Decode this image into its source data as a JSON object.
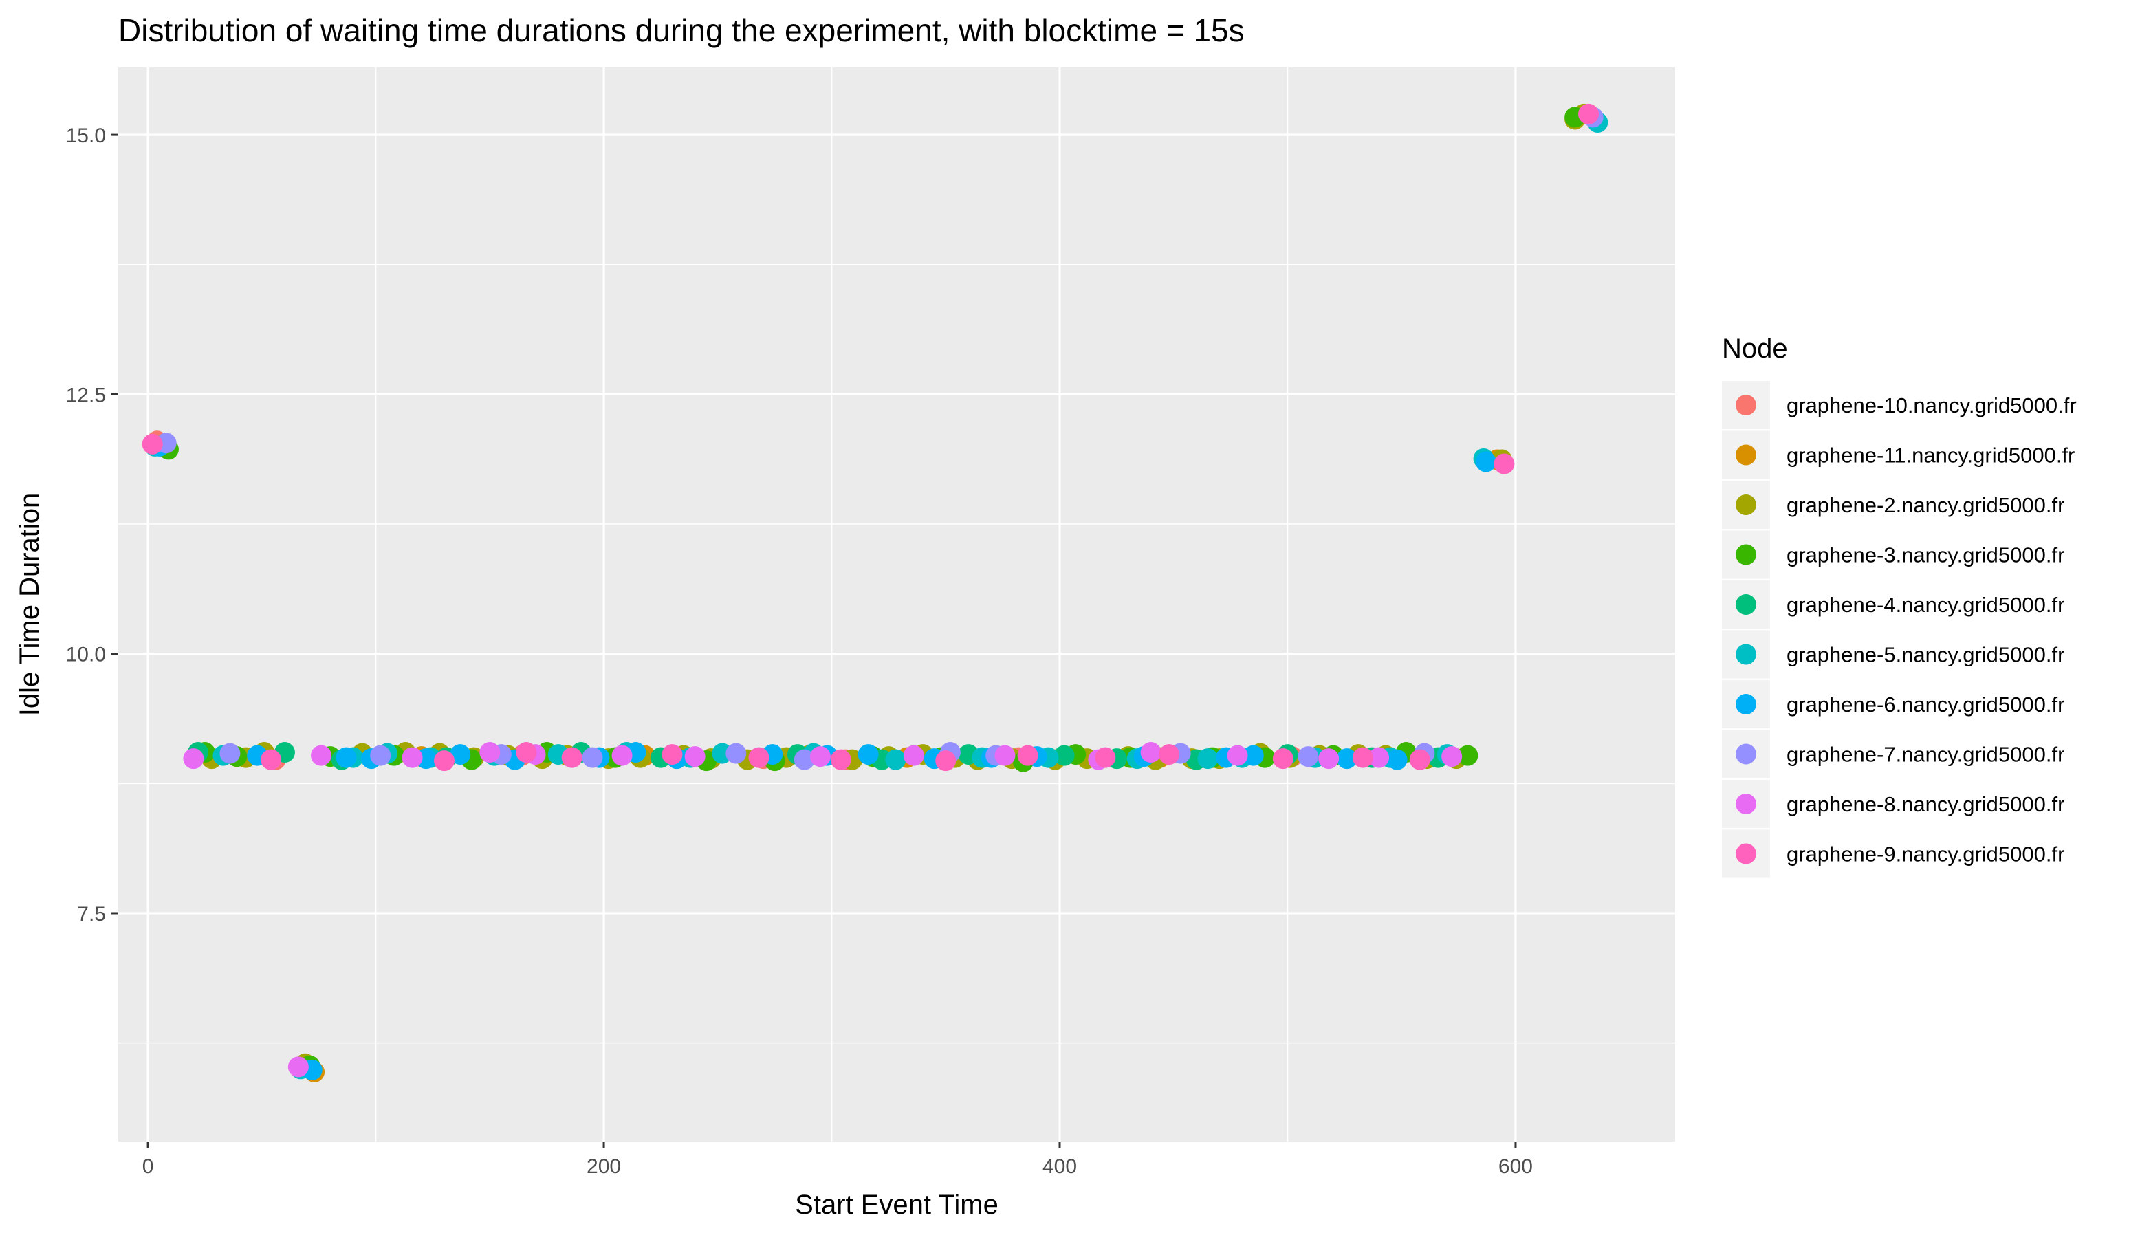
{
  "chart_data": {
    "type": "scatter",
    "title": "Distribution of waiting time durations during the experiment, with blocktime = 15s",
    "xlabel": "Start Event Time",
    "ylabel": "Idle Time Duration",
    "xlim": [
      -13,
      670
    ],
    "ylim": [
      5.3,
      15.65
    ],
    "x_ticks": [
      0,
      200,
      400,
      600
    ],
    "y_ticks": [
      7.5,
      10.0,
      12.5,
      15.0
    ],
    "x_tick_labels": [
      "0",
      "200",
      "400",
      "600"
    ],
    "y_tick_labels": [
      "7.5",
      "10.0",
      "12.5",
      "15.0"
    ],
    "grid": true,
    "legend": {
      "title": "Node",
      "position": "right"
    },
    "series": [
      {
        "name": "graphene-10.nancy.grid5000.fr",
        "color": "#F8766D",
        "points": [
          [
            4,
            12.05
          ],
          [
            56,
            8.98
          ],
          [
            164,
            9.02
          ],
          [
            270,
            8.99
          ],
          [
            306,
            8.98
          ],
          [
            382,
            9.0
          ],
          [
            502,
            9.01
          ]
        ]
      },
      {
        "name": "graphene-11.nancy.grid5000.fr",
        "color": "#D89000",
        "points": [
          [
            7,
            12.02
          ],
          [
            73,
            5.97
          ],
          [
            120,
            9.01
          ],
          [
            218,
            9.02
          ],
          [
            333,
            9.0
          ],
          [
            444,
            9.0
          ],
          [
            592,
            11.87
          ]
        ]
      },
      {
        "name": "graphene-2.nancy.grid5000.fr",
        "color": "#A3A500",
        "points": [
          [
            6,
            12.0
          ],
          [
            69,
            6.05
          ],
          [
            28,
            8.99
          ],
          [
            43,
            9.0
          ],
          [
            51,
            9.05
          ],
          [
            94,
            9.04
          ],
          [
            113,
            9.05
          ],
          [
            128,
            9.04
          ],
          [
            143,
            9.0
          ],
          [
            158,
            9.02
          ],
          [
            173,
            8.99
          ],
          [
            184,
            9.02
          ],
          [
            202,
            8.99
          ],
          [
            216,
            9.0
          ],
          [
            235,
            9.02
          ],
          [
            247,
            8.99
          ],
          [
            263,
            8.98
          ],
          [
            280,
            9.0
          ],
          [
            290,
            9.02
          ],
          [
            309,
            8.98
          ],
          [
            325,
            9.01
          ],
          [
            340,
            9.03
          ],
          [
            354,
            9.0
          ],
          [
            364,
            8.98
          ],
          [
            379,
            8.99
          ],
          [
            398,
            8.98
          ],
          [
            412,
            8.99
          ],
          [
            430,
            9.01
          ],
          [
            442,
            8.98
          ],
          [
            458,
            8.99
          ],
          [
            470,
            8.99
          ],
          [
            488,
            9.04
          ],
          [
            501,
            9.0
          ],
          [
            514,
            9.02
          ],
          [
            531,
            9.03
          ],
          [
            543,
            9.02
          ],
          [
            561,
            8.99
          ],
          [
            574,
            8.99
          ],
          [
            594,
            11.87
          ],
          [
            630,
            15.2
          ],
          [
            626,
            15.15
          ]
        ]
      },
      {
        "name": "graphene-3.nancy.grid5000.fr",
        "color": "#39B600",
        "points": [
          [
            9,
            11.97
          ],
          [
            71,
            6.03
          ],
          [
            25,
            9.05
          ],
          [
            39,
            9.01
          ],
          [
            80,
            9.01
          ],
          [
            108,
            9.02
          ],
          [
            142,
            8.98
          ],
          [
            175,
            9.05
          ],
          [
            205,
            9.0
          ],
          [
            245,
            8.97
          ],
          [
            275,
            8.97
          ],
          [
            318,
            9.01
          ],
          [
            348,
            9.0
          ],
          [
            384,
            8.96
          ],
          [
            407,
            9.03
          ],
          [
            431,
            9.0
          ],
          [
            467,
            9.0
          ],
          [
            490,
            9.0
          ],
          [
            520,
            9.02
          ],
          [
            552,
            9.05
          ],
          [
            579,
            9.02
          ],
          [
            626,
            15.17
          ]
        ]
      },
      {
        "name": "graphene-4.nancy.grid5000.fr",
        "color": "#00BF7D",
        "points": [
          [
            22,
            9.05
          ],
          [
            60,
            9.05
          ],
          [
            85,
            8.98
          ],
          [
            131,
            9.0
          ],
          [
            190,
            9.05
          ],
          [
            225,
            9.0
          ],
          [
            285,
            9.03
          ],
          [
            322,
            8.98
          ],
          [
            360,
            9.03
          ],
          [
            402,
            9.02
          ],
          [
            425,
            8.99
          ],
          [
            460,
            8.98
          ],
          [
            500,
            9.03
          ],
          [
            537,
            9.0
          ],
          [
            566,
            9.0
          ]
        ]
      },
      {
        "name": "graphene-5.nancy.grid5000.fr",
        "color": "#00BFC4",
        "points": [
          [
            3,
            12.0
          ],
          [
            67,
            6.0
          ],
          [
            33,
            9.02
          ],
          [
            90,
            9.0
          ],
          [
            105,
            9.04
          ],
          [
            124,
            9.0
          ],
          [
            152,
            9.02
          ],
          [
            180,
            9.03
          ],
          [
            210,
            9.05
          ],
          [
            238,
            9.0
          ],
          [
            252,
            9.04
          ],
          [
            292,
            9.04
          ],
          [
            328,
            8.98
          ],
          [
            366,
            9.0
          ],
          [
            395,
            9.0
          ],
          [
            434,
            8.99
          ],
          [
            465,
            8.99
          ],
          [
            480,
            9.0
          ],
          [
            512,
            9.0
          ],
          [
            545,
            9.0
          ],
          [
            570,
            9.03
          ],
          [
            586,
            11.88
          ],
          [
            636,
            15.12
          ]
        ]
      },
      {
        "name": "graphene-6.nancy.grid5000.fr",
        "color": "#00B0F6",
        "points": [
          [
            5,
            12.0
          ],
          [
            72,
            5.99
          ],
          [
            48,
            9.02
          ],
          [
            87,
            9.0
          ],
          [
            98,
            8.99
          ],
          [
            122,
            8.99
          ],
          [
            137,
            9.03
          ],
          [
            161,
            8.98
          ],
          [
            198,
            9.0
          ],
          [
            214,
            9.05
          ],
          [
            232,
            8.99
          ],
          [
            274,
            9.03
          ],
          [
            298,
            9.02
          ],
          [
            316,
            9.03
          ],
          [
            345,
            8.99
          ],
          [
            370,
            9.0
          ],
          [
            390,
            9.01
          ],
          [
            437,
            9.01
          ],
          [
            473,
            9.0
          ],
          [
            485,
            9.02
          ],
          [
            526,
            8.99
          ],
          [
            548,
            8.98
          ],
          [
            587,
            11.85
          ]
        ]
      },
      {
        "name": "graphene-7.nancy.grid5000.fr",
        "color": "#9590FF",
        "points": [
          [
            8,
            12.03
          ],
          [
            36,
            9.04
          ],
          [
            102,
            9.02
          ],
          [
            155,
            9.03
          ],
          [
            195,
            9.0
          ],
          [
            258,
            9.04
          ],
          [
            288,
            8.98
          ],
          [
            352,
            9.05
          ],
          [
            372,
            9.02
          ],
          [
            453,
            9.04
          ],
          [
            509,
            9.01
          ],
          [
            560,
            9.04
          ],
          [
            634,
            15.17
          ]
        ]
      },
      {
        "name": "graphene-8.nancy.grid5000.fr",
        "color": "#E76BF3",
        "points": [
          [
            66,
            6.02
          ],
          [
            20,
            8.99
          ],
          [
            76,
            9.02
          ],
          [
            116,
            9.0
          ],
          [
            150,
            9.05
          ],
          [
            170,
            9.03
          ],
          [
            208,
            9.02
          ],
          [
            240,
            9.01
          ],
          [
            295,
            9.01
          ],
          [
            336,
            9.02
          ],
          [
            376,
            9.02
          ],
          [
            417,
            8.98
          ],
          [
            440,
            9.05
          ],
          [
            478,
            9.02
          ],
          [
            518,
            8.99
          ],
          [
            540,
            9.0
          ],
          [
            572,
            9.01
          ]
        ]
      },
      {
        "name": "graphene-9.nancy.grid5000.fr",
        "color": "#FF62BC",
        "points": [
          [
            2,
            12.02
          ],
          [
            54,
            8.98
          ],
          [
            130,
            8.97
          ],
          [
            166,
            9.05
          ],
          [
            186,
            9.0
          ],
          [
            230,
            9.03
          ],
          [
            268,
            9.0
          ],
          [
            304,
            8.98
          ],
          [
            350,
            8.97
          ],
          [
            386,
            9.02
          ],
          [
            420,
            9.0
          ],
          [
            448,
            9.03
          ],
          [
            498,
            8.99
          ],
          [
            533,
            9.0
          ],
          [
            558,
            8.98
          ],
          [
            595,
            11.83
          ],
          [
            632,
            15.2
          ]
        ]
      }
    ]
  }
}
